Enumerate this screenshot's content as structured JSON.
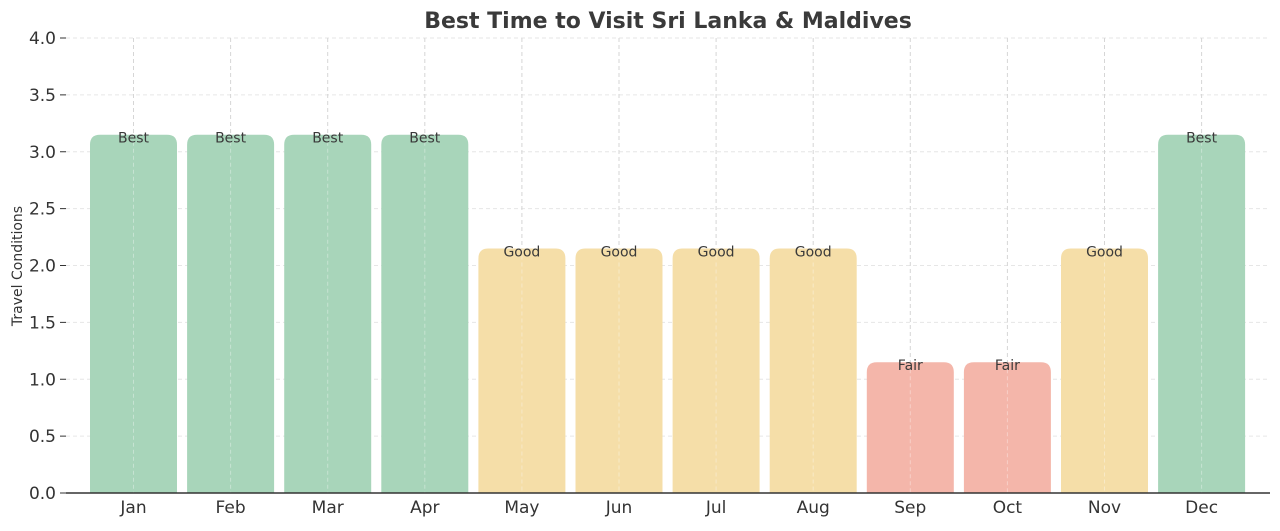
{
  "chart_data": {
    "type": "bar",
    "title": "Best Time to Visit Sri Lanka & Maldives",
    "xlabel": "",
    "ylabel": "Travel Conditions",
    "ylim": [
      0,
      4
    ],
    "yticks": [
      "0.0",
      "0.5",
      "1.0",
      "1.5",
      "2.0",
      "2.5",
      "3.0",
      "3.5",
      "4.0"
    ],
    "categories": [
      "Jan",
      "Feb",
      "Mar",
      "Apr",
      "May",
      "Jun",
      "Jul",
      "Aug",
      "Sep",
      "Oct",
      "Nov",
      "Dec"
    ],
    "values": [
      3.15,
      3.15,
      3.15,
      3.15,
      2.15,
      2.15,
      2.15,
      2.15,
      1.15,
      1.15,
      2.15,
      3.15
    ],
    "bar_labels": [
      "Best",
      "Best",
      "Best",
      "Best",
      "Good",
      "Good",
      "Good",
      "Good",
      "Fair",
      "Fair",
      "Good",
      "Best"
    ],
    "grid": true,
    "colors": {
      "Best": "#a8d5ba",
      "Good": "#f5dea8",
      "Fair": "#f4b6aa"
    }
  }
}
